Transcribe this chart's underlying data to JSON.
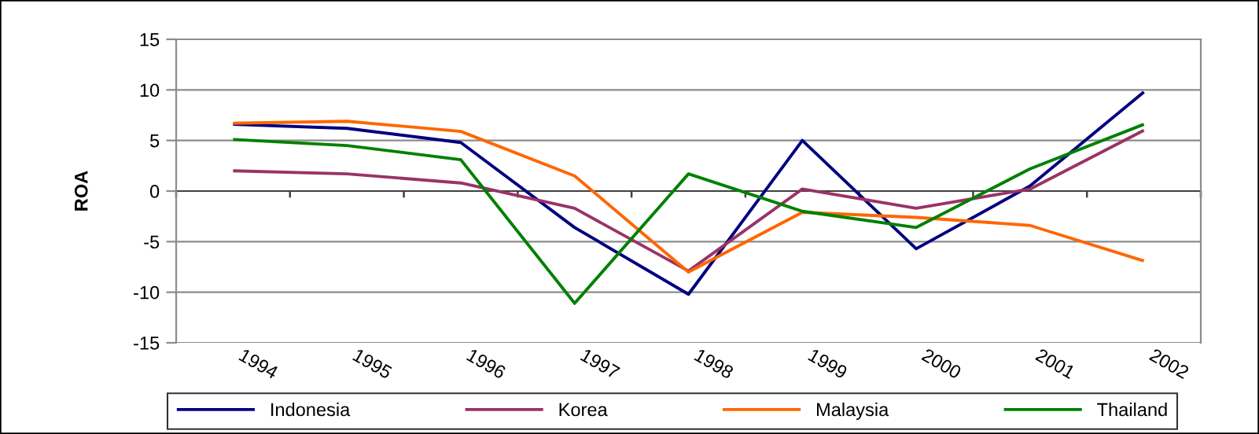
{
  "chart_data": {
    "type": "line",
    "ylabel": "ROA",
    "categories": [
      "1994",
      "1995",
      "1996",
      "1997",
      "1998",
      "1999",
      "2000",
      "2001",
      "2002"
    ],
    "series": [
      {
        "name": "Indonesia",
        "color": "#000080",
        "values": [
          6.6,
          6.2,
          4.8,
          -3.6,
          -10.2,
          5.0,
          -5.7,
          0.5,
          9.8
        ]
      },
      {
        "name": "Korea",
        "color": "#993366",
        "values": [
          2.0,
          1.7,
          0.8,
          -1.7,
          -7.9,
          0.2,
          -1.7,
          0.2,
          6.0
        ]
      },
      {
        "name": "Malaysia",
        "color": "#ff6600",
        "values": [
          6.7,
          6.9,
          5.9,
          1.5,
          -8.0,
          -2.1,
          -2.6,
          -3.4,
          -6.9
        ]
      },
      {
        "name": "Thailand",
        "color": "#008000",
        "values": [
          5.1,
          4.5,
          3.1,
          -11.1,
          1.7,
          -2.0,
          -3.6,
          2.2,
          6.6
        ]
      }
    ],
    "ylim": [
      -15,
      15
    ],
    "yticks": [
      -15,
      -10,
      -5,
      0,
      5,
      10,
      15
    ],
    "grid": "y",
    "legend": "bottom"
  }
}
